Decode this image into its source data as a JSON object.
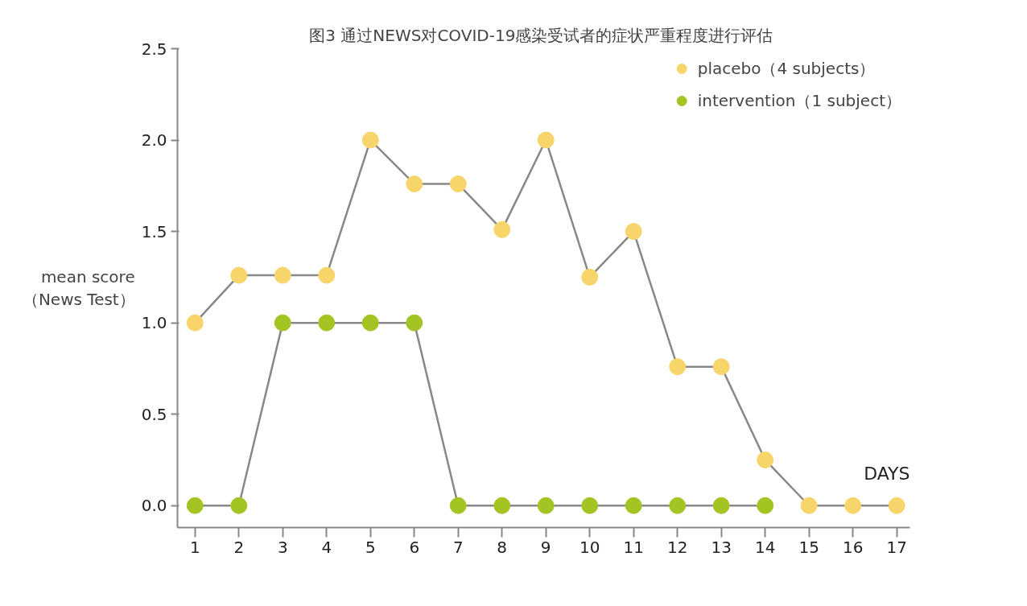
{
  "chart_data": {
    "type": "line",
    "title": "图3  通过NEWS对COVID-19感染受试者的症状严重程度进行评估",
    "xlabel": "DAYS",
    "ylabel": "mean score\n（News Test）",
    "x": [
      1,
      2,
      3,
      4,
      5,
      6,
      7,
      8,
      9,
      10,
      11,
      12,
      13,
      14,
      15,
      16,
      17
    ],
    "series": [
      {
        "name": "placebo（4 subjects）",
        "color": "#f7d56b",
        "values": [
          1.0,
          1.26,
          1.26,
          1.26,
          2.0,
          1.76,
          1.76,
          1.51,
          2.0,
          1.25,
          1.5,
          0.76,
          0.76,
          0.25,
          0,
          0,
          0
        ]
      },
      {
        "name": "intervention（1 subject）",
        "color": "#a4c424",
        "values": [
          0,
          0,
          1,
          1,
          1,
          1,
          0,
          0,
          0,
          0,
          0,
          0,
          0,
          0,
          null,
          null,
          null
        ]
      }
    ],
    "xlim": [
      0.6,
      17.3
    ],
    "xticks": [
      1,
      2,
      3,
      4,
      5,
      6,
      7,
      8,
      9,
      10,
      11,
      12,
      13,
      14,
      15,
      16,
      17
    ],
    "ylim": [
      -0.12,
      2.5
    ],
    "yticks": [
      {
        "value": 0,
        "label": "0.0"
      },
      {
        "value": 0.5,
        "label": "0.5"
      },
      {
        "value": 1,
        "label": "1.0"
      },
      {
        "value": 1.5,
        "label": "1.5"
      },
      {
        "value": 2,
        "label": "2.0"
      },
      {
        "value": 2.5,
        "label": "2.5"
      }
    ],
    "grid": false,
    "legend": "top right",
    "marker": "circle",
    "line_style": "solid"
  }
}
